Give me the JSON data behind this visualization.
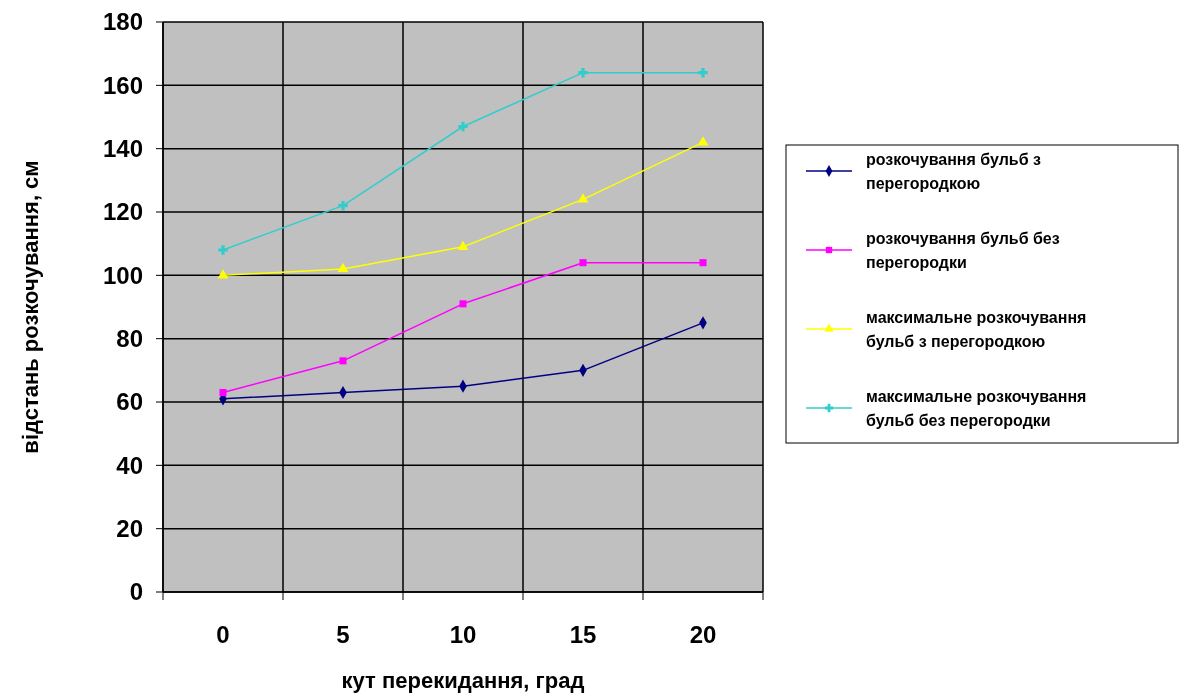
{
  "chart_data": {
    "type": "line",
    "xlabel": "кут перекидання, град",
    "ylabel": "відстань розкочування, см",
    "categories": [
      "0",
      "5",
      "10",
      "15",
      "20"
    ],
    "ylim": [
      0,
      180
    ],
    "yticks": [
      0,
      20,
      40,
      60,
      80,
      100,
      120,
      140,
      160,
      180
    ],
    "grid": true,
    "legend": "right",
    "series": [
      {
        "name": "розкочування бульб з перегородкою",
        "color": "#000080",
        "marker": "diamond",
        "values": [
          61,
          63,
          65,
          70,
          85
        ]
      },
      {
        "name": "розкочування бульб без перегородки",
        "color": "#ff00ff",
        "marker": "square",
        "values": [
          63,
          73,
          91,
          104,
          104
        ]
      },
      {
        "name": "максимальне розкочування бульб з перегородкою",
        "color": "#ffff00",
        "marker": "triangle",
        "values": [
          100,
          102,
          109,
          124,
          142
        ]
      },
      {
        "name": "максимальне розкочування бульб без перегородки",
        "color": "#33cccc",
        "marker": "cross",
        "values": [
          108,
          122,
          147,
          164,
          164
        ]
      }
    ]
  }
}
